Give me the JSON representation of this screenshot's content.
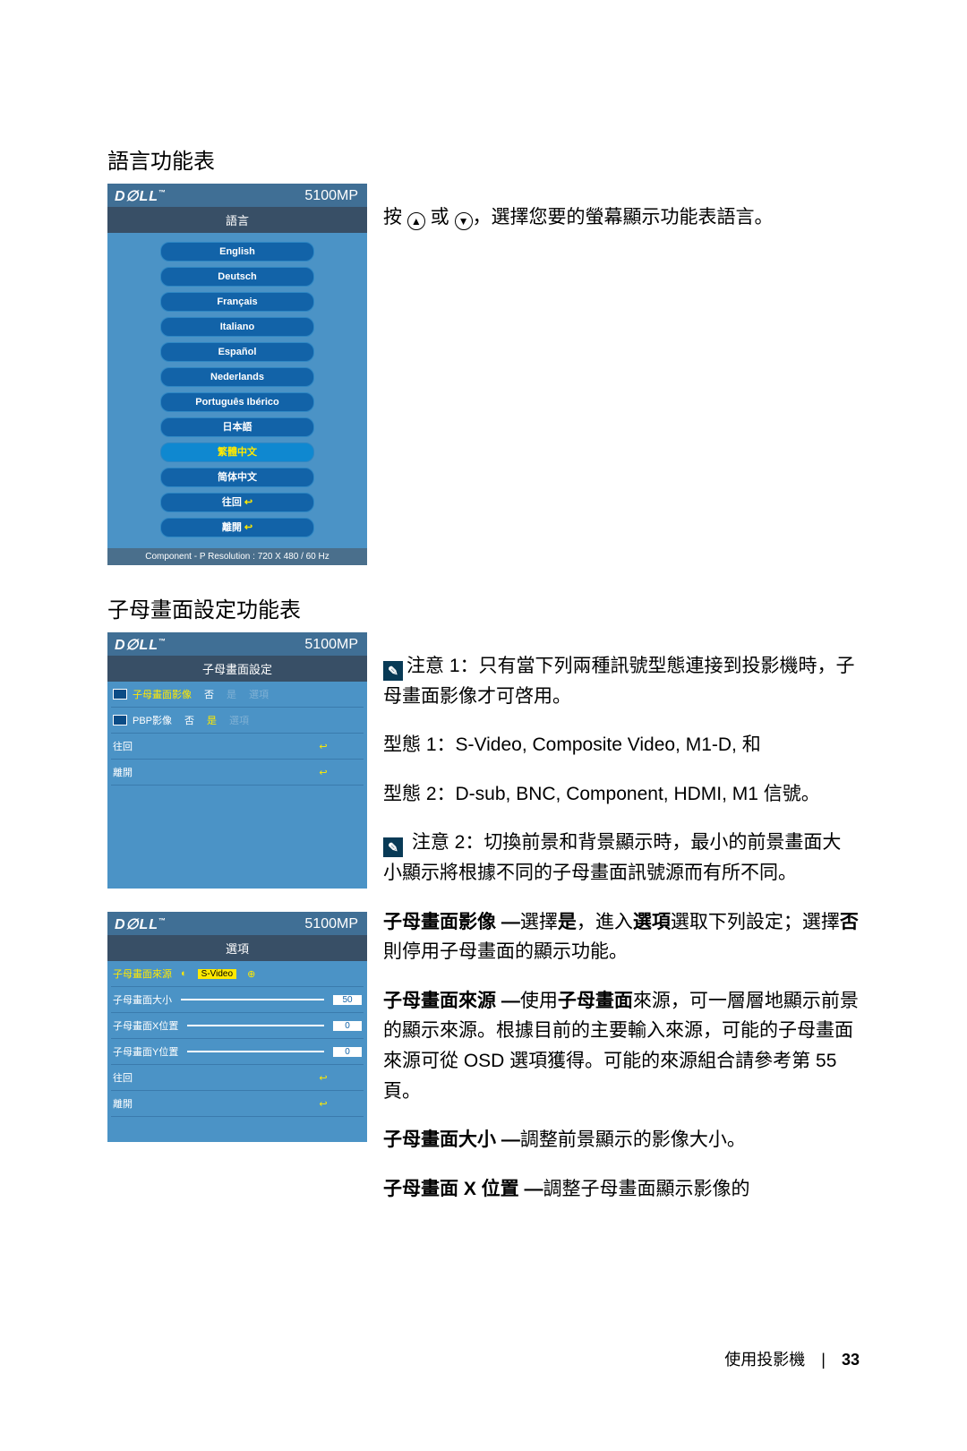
{
  "section1": {
    "title": "語言功能表"
  },
  "section2": {
    "title": "子母畫面設定功能表"
  },
  "osd_lang": {
    "brand": "D∅LL",
    "tm": "™",
    "model": "5100MP",
    "title": "語言",
    "items": [
      "English",
      "Deutsch",
      "Français",
      "Italiano",
      "Español",
      "Nederlands",
      "Português Ibérico",
      "日本語",
      "繁體中文",
      "简体中文",
      "往回",
      "離開"
    ],
    "selectedIndex": 8,
    "foot": "Component - P Resolution : 720 X 480 / 60 Hz"
  },
  "osd_pip": {
    "brand": "D∅LL",
    "tm": "™",
    "model": "5100MP",
    "title": "子母畫面設定",
    "rows": [
      {
        "icon": true,
        "label": "子母畫面影像",
        "label_hl": true,
        "opts": [
          "否",
          "是",
          "選項"
        ],
        "dimFrom": 1
      },
      {
        "icon": true,
        "label": "PBP影像",
        "opts": [
          "否",
          "是",
          "選項"
        ],
        "dimFrom": 2
      },
      {
        "label": "往回",
        "arrow": "↩"
      },
      {
        "label": "離開",
        "arrow": "↩"
      }
    ]
  },
  "osd_opt": {
    "brand": "D∅LL",
    "tm": "™",
    "model": "5100MP",
    "title": "選項",
    "rows": [
      {
        "label": "子母畫面來源",
        "label_hl": true,
        "source": "S-Video"
      },
      {
        "label": "子母畫面大小",
        "bar": true,
        "val": "50"
      },
      {
        "label": "子母畫面X位置",
        "bar": true,
        "val": "0"
      },
      {
        "label": "子母畫面Y位置",
        "bar": true,
        "val": "0"
      },
      {
        "label": "往回",
        "arrow": "↩"
      },
      {
        "label": "離開",
        "arrow": "↩"
      }
    ]
  },
  "text": {
    "p1a": "按 ",
    "p1b": " 或 ",
    "p1c": "，選擇您要的螢幕顯示功能表語言。",
    "n1": "注意 1：只有當下列兩種訊號型態連接到投影機時，子母畫面影像才可啓用。",
    "t1": "型態 1：S-Video, Composite Video, M1-D, 和",
    "t2": "型態 2：D-sub, BNC, Component, HDMI, M1 信號。",
    "n2": " 注意 2：切換前景和背景顯示時，最小的前景畫面大小顯示將根據不同的子母畫面訊號源而有所不同。",
    "pA_b": "子母畫面影像 —",
    "pA": "選擇",
    "pA_b2": "是",
    "pA2": "，進入",
    "pA_b3": "選項",
    "pA3": "選取下列設定；選擇",
    "pA_b4": "否",
    "pA4": "則停用子母畫面的顯示功能。",
    "pB_b": "子母畫面來源 —",
    "pB": "使用",
    "pB_b2": "子母畫面",
    "pB2": "來源，可一層層地顯示前景的顯示來源。根據目前的主要輸入來源，可能的子母畫面來源可從 OSD 選項獲得。可能的來源組合請參考第 55 頁。",
    "pC_b": "子母畫面大小 —",
    "pC": "調整前景顯示的影像大小。",
    "pD_b": "子母畫面 X 位置 —",
    "pD": "調整子母畫面顯示影像的"
  },
  "footer": {
    "label": "使用投影機",
    "page": "33"
  }
}
